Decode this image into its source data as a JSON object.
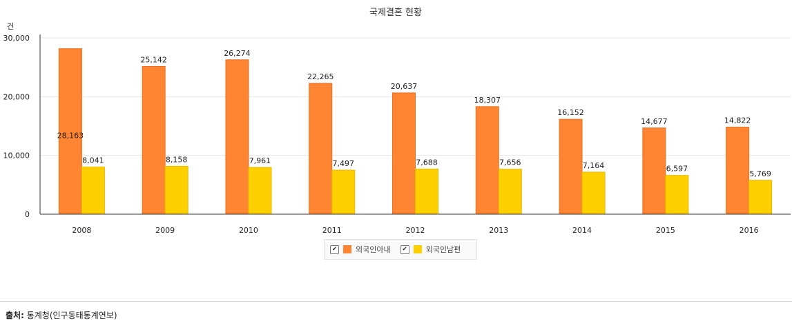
{
  "chart_data": {
    "type": "bar",
    "title": "국제결혼 현황",
    "ylabel": "건",
    "xlabel": "",
    "ylim": [
      0,
      30000
    ],
    "yticks": [
      "0",
      "10,000",
      "20,000",
      "30,000"
    ],
    "ytick_values": [
      0,
      10000,
      20000,
      30000
    ],
    "categories": [
      "2008",
      "2009",
      "2010",
      "2011",
      "2012",
      "2013",
      "2014",
      "2015",
      "2016"
    ],
    "series": [
      {
        "name": "외국인아내",
        "color": "#FF8533",
        "values": [
          28163,
          25142,
          26274,
          22265,
          20637,
          18307,
          16152,
          14677,
          14822
        ],
        "labels": [
          "28,163",
          "25,142",
          "26,274",
          "22,265",
          "20,637",
          "18,307",
          "16,152",
          "14,677",
          "14,822"
        ]
      },
      {
        "name": "외국인남편",
        "color": "#FFD000",
        "values": [
          8041,
          8158,
          7961,
          7497,
          7688,
          7656,
          7164,
          6597,
          5769
        ],
        "labels": [
          "8,041",
          "8,158",
          "7,961",
          "7,497",
          "7,688",
          "7,656",
          "7,164",
          "6,597",
          "5,769"
        ]
      }
    ],
    "grid": true,
    "legend": "bottom-center"
  },
  "legend": {
    "check_glyph": "✔",
    "items": [
      {
        "label": "외국인아내",
        "color": "#FF8533",
        "checked": true
      },
      {
        "label": "외국인남편",
        "color": "#FFD000",
        "checked": true
      }
    ]
  },
  "source": {
    "label": "출처:",
    "text": "통계청(인구동태통계연보)"
  }
}
